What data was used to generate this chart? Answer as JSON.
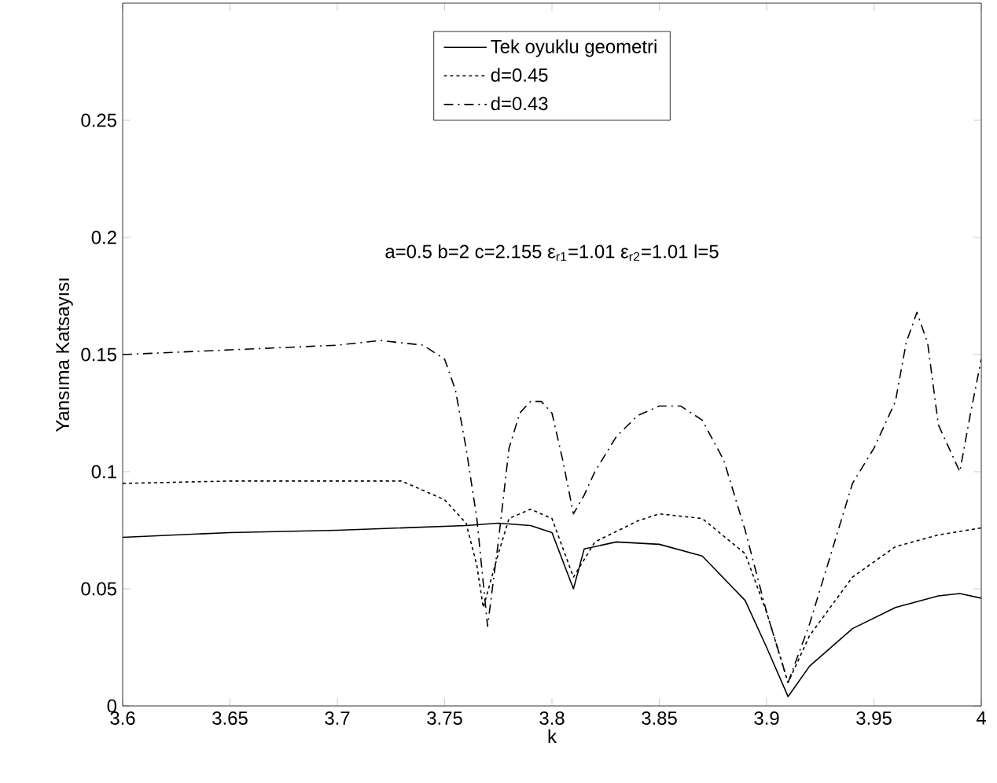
{
  "chart_data": {
    "type": "line",
    "xlabel": "k",
    "ylabel": "Yansıma Katsayısı",
    "xlim": [
      3.6,
      4
    ],
    "ylim": [
      0,
      0.3
    ],
    "xticks": [
      3.6,
      3.65,
      3.7,
      3.75,
      3.8,
      3.85,
      3.9,
      3.95,
      4
    ],
    "yticks": [
      0,
      0.05,
      0.1,
      0.15,
      0.2,
      0.25
    ],
    "legend": "top",
    "grid": false,
    "annotations": [
      "a=0.5 b=2  c=2.155 ε$_{r1}$=1.01 ε$_{r2}$=1.01 l=5"
    ],
    "series": [
      {
        "name": "Tek oyuklu geometri",
        "color": "#000000",
        "line_style": "solid",
        "x": [
          3.6,
          3.65,
          3.7,
          3.76,
          3.775,
          3.79,
          3.8,
          3.81,
          3.815,
          3.83,
          3.85,
          3.87,
          3.89,
          3.9,
          3.91,
          3.92,
          3.94,
          3.96,
          3.98,
          3.99,
          4.0
        ],
        "values": [
          0.072,
          0.074,
          0.075,
          0.077,
          0.078,
          0.077,
          0.074,
          0.05,
          0.067,
          0.07,
          0.069,
          0.064,
          0.045,
          0.025,
          0.004,
          0.017,
          0.033,
          0.042,
          0.047,
          0.048,
          0.046
        ]
      },
      {
        "name": "d=0.45",
        "color": "#000000",
        "line_style": "dotted",
        "x": [
          3.6,
          3.65,
          3.7,
          3.73,
          3.74,
          3.75,
          3.76,
          3.765,
          3.768,
          3.775,
          3.78,
          3.79,
          3.8,
          3.81,
          3.82,
          3.84,
          3.85,
          3.87,
          3.89,
          3.9,
          3.91,
          3.92,
          3.94,
          3.96,
          3.98,
          4.0
        ],
        "values": [
          0.095,
          0.096,
          0.096,
          0.096,
          0.092,
          0.088,
          0.078,
          0.06,
          0.042,
          0.065,
          0.08,
          0.084,
          0.08,
          0.055,
          0.07,
          0.079,
          0.082,
          0.08,
          0.065,
          0.04,
          0.01,
          0.03,
          0.055,
          0.068,
          0.073,
          0.076
        ]
      },
      {
        "name": "d=0.43",
        "color": "#000000",
        "line_style": "dashdot",
        "x": [
          3.6,
          3.65,
          3.7,
          3.72,
          3.74,
          3.75,
          3.755,
          3.76,
          3.765,
          3.77,
          3.775,
          3.78,
          3.785,
          3.79,
          3.795,
          3.8,
          3.805,
          3.81,
          3.815,
          3.82,
          3.83,
          3.84,
          3.85,
          3.86,
          3.87,
          3.88,
          3.89,
          3.9,
          3.91,
          3.92,
          3.93,
          3.94,
          3.95,
          3.96,
          3.965,
          3.97,
          3.975,
          3.98,
          3.99,
          3.995,
          4.0
        ],
        "values": [
          0.15,
          0.152,
          0.154,
          0.156,
          0.154,
          0.148,
          0.135,
          0.11,
          0.08,
          0.034,
          0.07,
          0.11,
          0.125,
          0.13,
          0.13,
          0.125,
          0.105,
          0.082,
          0.09,
          0.1,
          0.115,
          0.124,
          0.128,
          0.128,
          0.122,
          0.105,
          0.075,
          0.04,
          0.01,
          0.035,
          0.065,
          0.095,
          0.11,
          0.13,
          0.155,
          0.168,
          0.155,
          0.12,
          0.1,
          0.125,
          0.148
        ]
      }
    ]
  }
}
